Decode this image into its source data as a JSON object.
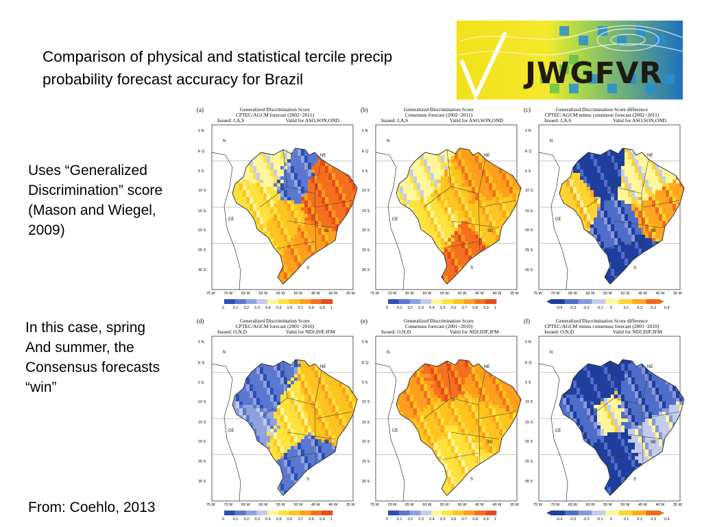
{
  "title": "Comparison of physical and statistical tercile precip probability forecast accuracy for Brazil",
  "logo_text": "JWGFVR",
  "text_blocks": [
    "Uses “Generalized\nDiscrimination” score\n(Mason and Wiegel,\n2009)",
    "In this case, spring\nAnd summer, the\nConsensus forecasts\n“win”",
    "From: Coehlo, 2013"
  ],
  "map_labels": {
    "regions": [
      "N",
      "NE",
      "CE",
      "SE",
      "S"
    ],
    "lats": [
      "5 N",
      "E Q",
      "5 S",
      "10 S",
      "15 S",
      "20 S",
      "25 S",
      "30 S"
    ],
    "lons": [
      "75 W",
      "70 W",
      "65 W",
      "60 W",
      "55 W",
      "50 W",
      "45 W",
      "40 W",
      "35 W"
    ]
  },
  "colorbar_score": [
    "0",
    "0.1",
    "0.2",
    "0.3",
    "0.4",
    "0.5",
    "0.6",
    "0.7",
    "0.8",
    "0.9",
    "1"
  ],
  "colorbar_diff": [
    "-0.4",
    "-0.3",
    "-0.2",
    "-0.1",
    "0",
    "0.1",
    "0.2",
    "0.3",
    "0.4"
  ],
  "colors": {
    "score_scale": [
      "#2b4fb5",
      "#5a78cf",
      "#8fa2de",
      "#c3ccee",
      "#fff79a",
      "#ffe23e",
      "#ffc41f",
      "#ff9f1c",
      "#f5701e",
      "#e84a1c"
    ],
    "diff_scale": [
      "#1f3f9e",
      "#4e6ec9",
      "#8898d8",
      "#c3ccee",
      "#fff79a",
      "#ffd330",
      "#ffa81f",
      "#f06a1c"
    ]
  },
  "panels": [
    {
      "letter": "(a)",
      "header1": "Generalized Discrimination Score",
      "header2": "CPTEC/AGCM forecast (2002−2011)",
      "issued": "Issued: J,A,S",
      "valid": "Valid for ASO,SON,OND",
      "colorbar": "score"
    },
    {
      "letter": "(b)",
      "header1": "Generalized Discrimination Score",
      "header2": "Consensus forecast (2002−2011)",
      "issued": "Issued: J,A,S",
      "valid": "Valid for ASO,SON,OND",
      "colorbar": "score"
    },
    {
      "letter": "(c)",
      "header1": "Generalized Discrimination Score difference",
      "header2": "CPTEC/AGCM minus consensus forecast (2002−2011)",
      "issued": "Issued: J,A,S",
      "valid": "Valid for ASO,SON,OND",
      "colorbar": "diff"
    },
    {
      "letter": "(d)",
      "header1": "Generalized Discrimination Score",
      "header2": "CPTEC/AGCM forecast (2001−2010)",
      "issued": "Issued: O,N,D",
      "valid": "Valid for NDJ,DJF,JFM",
      "colorbar": "score"
    },
    {
      "letter": "(e)",
      "header1": "Generalized Discrimination Score",
      "header2": "Consensus forecast (2001−2010)",
      "issued": "Issued: O,N,D",
      "valid": "Valid for NDJ,DJF,JFM",
      "colorbar": "score"
    },
    {
      "letter": "(f)",
      "header1": "Generalized Discrimination Score difference",
      "header2": "CPTEC/AGCM minus consensus forecast (2001−2010)",
      "issued": "Issued: O,N,D",
      "valid": "Valid for NDJ,DJF,JFM",
      "colorbar": "diff"
    }
  ]
}
